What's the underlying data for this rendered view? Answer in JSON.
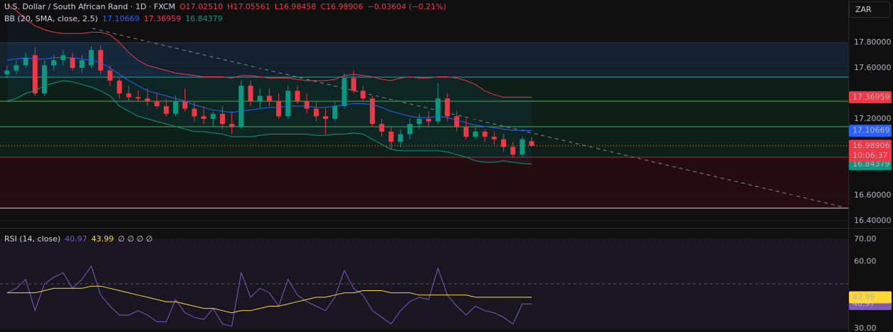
{
  "price_scale_currency": "ZAR",
  "chart_data": [
    {
      "type": "candlestick",
      "title": "U.S. Dollar / South African Rand · 1D · FXCM",
      "ohlc_labels": [
        "O17.02510",
        "H17.05561",
        "L16.98458",
        "C16.98906"
      ],
      "change_label": "−0.03604 (−0.21%)",
      "countdown": "10:06:37",
      "last_label": "16.98906",
      "up_color": "#089981",
      "down_color": "#f23645",
      "open": [
        17.55,
        17.58,
        17.62,
        17.7,
        17.4,
        17.62,
        17.66,
        17.68,
        17.6,
        17.62,
        17.74,
        17.58,
        17.5,
        17.4,
        17.37,
        17.36,
        17.34,
        17.3,
        17.24,
        17.34,
        17.28,
        17.22,
        17.2,
        17.24,
        17.16,
        17.14,
        17.46,
        17.34,
        17.38,
        17.34,
        17.22,
        17.42,
        17.34,
        17.28,
        17.22,
        17.2,
        17.3,
        17.52,
        17.42,
        17.36,
        17.16,
        17.1,
        17.02,
        17.08,
        17.16,
        17.2,
        17.18,
        17.36,
        17.22,
        17.14,
        17.06,
        17.1,
        17.06,
        17.04,
        16.98,
        16.92,
        17.0251
      ],
      "high": [
        17.62,
        17.66,
        17.72,
        17.76,
        17.66,
        17.7,
        17.74,
        17.72,
        17.7,
        17.77,
        17.78,
        17.62,
        17.52,
        17.46,
        17.42,
        17.44,
        17.4,
        17.36,
        17.38,
        17.44,
        17.34,
        17.3,
        17.26,
        17.3,
        17.26,
        17.5,
        17.5,
        17.44,
        17.44,
        17.4,
        17.46,
        17.46,
        17.4,
        17.34,
        17.28,
        17.34,
        17.56,
        17.58,
        17.46,
        17.38,
        17.2,
        17.14,
        17.12,
        17.2,
        17.24,
        17.26,
        17.48,
        17.4,
        17.26,
        17.2,
        17.14,
        17.12,
        17.1,
        17.08,
        17.02,
        17.06,
        17.05561
      ],
      "low": [
        17.52,
        17.55,
        17.6,
        17.38,
        17.38,
        17.58,
        17.62,
        17.58,
        17.56,
        17.6,
        17.55,
        17.46,
        17.36,
        17.34,
        17.33,
        17.3,
        17.28,
        17.22,
        17.22,
        17.26,
        17.18,
        17.16,
        17.14,
        17.12,
        17.08,
        17.12,
        17.3,
        17.28,
        17.3,
        17.2,
        17.2,
        17.32,
        17.24,
        17.18,
        17.08,
        17.18,
        17.28,
        17.4,
        17.34,
        17.14,
        17.06,
        16.96,
        16.98,
        17.04,
        17.12,
        17.14,
        17.16,
        17.18,
        17.1,
        17.04,
        17.04,
        17.02,
        17.0,
        16.94,
        16.9,
        16.9,
        16.98458
      ],
      "close": [
        17.58,
        17.62,
        17.68,
        17.4,
        17.62,
        17.66,
        17.7,
        17.6,
        17.66,
        17.74,
        17.58,
        17.5,
        17.4,
        17.37,
        17.36,
        17.34,
        17.3,
        17.24,
        17.34,
        17.28,
        17.22,
        17.2,
        17.24,
        17.16,
        17.14,
        17.46,
        17.34,
        17.38,
        17.34,
        17.22,
        17.42,
        17.34,
        17.28,
        17.22,
        17.2,
        17.3,
        17.52,
        17.42,
        17.36,
        17.16,
        17.1,
        17.02,
        17.08,
        17.16,
        17.2,
        17.18,
        17.36,
        17.22,
        17.14,
        17.06,
        17.1,
        17.06,
        17.04,
        16.98,
        16.92,
        17.04,
        16.98906
      ],
      "indicator": "BB (20, SMA, close, 2.5)",
      "series": [
        {
          "color": "#2962ff",
          "last_label": "17.10669",
          "values": [
            17.66,
            17.67,
            17.68,
            17.67,
            17.67,
            17.68,
            17.68,
            17.68,
            17.67,
            17.66,
            17.64,
            17.6,
            17.55,
            17.5,
            17.46,
            17.42,
            17.4,
            17.38,
            17.36,
            17.34,
            17.31,
            17.29,
            17.27,
            17.26,
            17.25,
            17.26,
            17.27,
            17.28,
            17.29,
            17.29,
            17.3,
            17.3,
            17.3,
            17.29,
            17.29,
            17.3,
            17.31,
            17.32,
            17.32,
            17.31,
            17.29,
            17.26,
            17.24,
            17.22,
            17.21,
            17.21,
            17.22,
            17.21,
            17.19,
            17.17,
            17.15,
            17.14,
            17.13,
            17.12,
            17.11,
            17.11,
            17.10669
          ]
        },
        {
          "color": "#f23645",
          "last_label": "17.36959",
          "values": [
            18.1,
            18.05,
            17.98,
            17.93,
            17.9,
            17.88,
            17.87,
            17.87,
            17.87,
            17.88,
            17.88,
            17.86,
            17.8,
            17.72,
            17.66,
            17.62,
            17.6,
            17.58,
            17.56,
            17.55,
            17.54,
            17.53,
            17.53,
            17.53,
            17.52,
            17.54,
            17.54,
            17.53,
            17.52,
            17.52,
            17.52,
            17.51,
            17.5,
            17.5,
            17.5,
            17.51,
            17.54,
            17.55,
            17.54,
            17.53,
            17.51,
            17.5,
            17.52,
            17.53,
            17.52,
            17.52,
            17.53,
            17.53,
            17.52,
            17.5,
            17.47,
            17.42,
            17.39,
            17.37,
            17.37,
            17.37,
            17.36959
          ]
        },
        {
          "color": "#089981",
          "last_label": "16.84379",
          "values": [
            17.34,
            17.36,
            17.4,
            17.42,
            17.46,
            17.48,
            17.5,
            17.49,
            17.47,
            17.45,
            17.42,
            17.38,
            17.3,
            17.26,
            17.22,
            17.2,
            17.18,
            17.16,
            17.14,
            17.12,
            17.1,
            17.1,
            17.09,
            17.08,
            17.06,
            17.06,
            17.06,
            17.07,
            17.08,
            17.08,
            17.08,
            17.08,
            17.08,
            17.07,
            17.07,
            17.08,
            17.08,
            17.09,
            17.08,
            17.04,
            17.0,
            16.96,
            16.95,
            16.95,
            16.95,
            16.95,
            16.95,
            16.94,
            16.92,
            16.9,
            16.87,
            16.86,
            16.86,
            16.87,
            16.86,
            16.85,
            16.84379
          ]
        }
      ],
      "ylim": [
        16.344,
        18.133
      ],
      "yticks": [
        {
          "value": 16.4,
          "label": "16.40000"
        },
        {
          "value": 16.6,
          "label": "16.60000"
        },
        {
          "value": 17.2,
          "label": "17.20000"
        },
        {
          "value": 17.6,
          "label": "17.60000"
        },
        {
          "value": 17.8,
          "label": "17.80000"
        }
      ],
      "grid": true
    },
    {
      "type": "line",
      "title": "RSI (14, close)",
      "placeholder_labels": "∅ ∅ ∅ ∅",
      "series": [
        {
          "color": "#7e57c2",
          "last_label": "40.97",
          "values": [
            46,
            48,
            52,
            38,
            50,
            53,
            55,
            48,
            52,
            58,
            45,
            40,
            36,
            36,
            38,
            36,
            33,
            33,
            43,
            37,
            35,
            34,
            39,
            32,
            31,
            55,
            44,
            48,
            46,
            40,
            52,
            45,
            42,
            40,
            38,
            44,
            56,
            48,
            45,
            38,
            35,
            32,
            38,
            42,
            44,
            43,
            57,
            45,
            40,
            36,
            40,
            38,
            37,
            35,
            32,
            41,
            40.97
          ]
        },
        {
          "color": "#fdd835",
          "last_label": "43.99",
          "values": [
            46,
            46,
            46,
            46,
            47,
            48,
            48,
            48,
            48,
            49,
            49,
            48,
            47,
            46,
            45,
            44,
            43,
            42,
            42,
            41,
            40,
            39,
            39,
            38,
            37,
            38,
            38,
            39,
            40,
            40,
            41,
            42,
            43,
            44,
            44,
            45,
            46,
            46,
            47,
            47,
            47,
            46,
            46,
            46,
            45,
            45,
            45,
            45,
            45,
            45,
            44,
            44,
            44,
            44,
            44,
            44,
            43.99
          ]
        }
      ],
      "ylim": [
        28.4,
        74.8
      ],
      "yticks": [
        {
          "value": 30,
          "label": "30.00"
        },
        {
          "value": 60,
          "label": "60.00"
        },
        {
          "value": 70,
          "label": "70.00"
        }
      ],
      "grid": true
    }
  ]
}
